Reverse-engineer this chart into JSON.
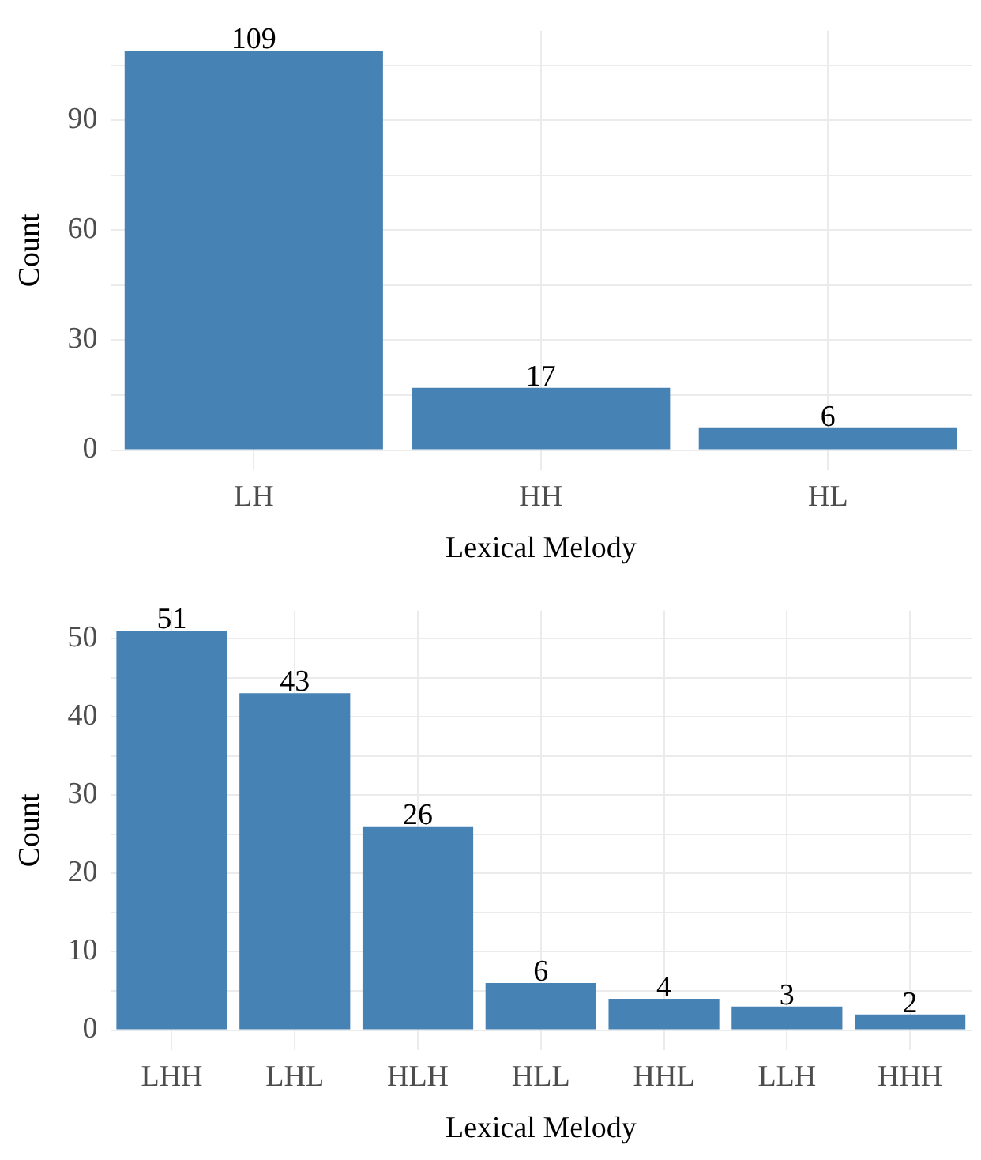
{
  "chart_data": [
    {
      "type": "bar",
      "xlabel": "Lexical Melody",
      "ylabel": "Count",
      "categories": [
        "LH",
        "HH",
        "HL"
      ],
      "values": [
        109,
        17,
        6
      ],
      "color": "#4682b4",
      "ylim": [
        -5.45,
        114.45
      ],
      "yticks": [
        0,
        {
          "value": 15,
          "label": null
        },
        30,
        {
          "value": 45,
          "label": null
        },
        60,
        {
          "value": 75,
          "label": null
        },
        90,
        {
          "value": 105,
          "label": null
        }
      ],
      "grid": true,
      "data_labels": true
    },
    {
      "type": "bar",
      "xlabel": "Lexical Melody",
      "ylabel": "Count",
      "categories": [
        "LHH",
        "LHL",
        "HLH",
        "HLL",
        "HHL",
        "LLH",
        "HHH"
      ],
      "values": [
        51,
        43,
        26,
        6,
        4,
        3,
        2
      ],
      "color": "#4682b4",
      "ylim": [
        -2.55,
        53.55
      ],
      "yticks": [
        0,
        {
          "value": 5,
          "label": null
        },
        10,
        {
          "value": 15,
          "label": null
        },
        20,
        {
          "value": 25,
          "label": null
        },
        30,
        {
          "value": 35,
          "label": null
        },
        40,
        {
          "value": 45,
          "label": null
        },
        50
      ],
      "grid": true,
      "data_labels": true
    }
  ]
}
